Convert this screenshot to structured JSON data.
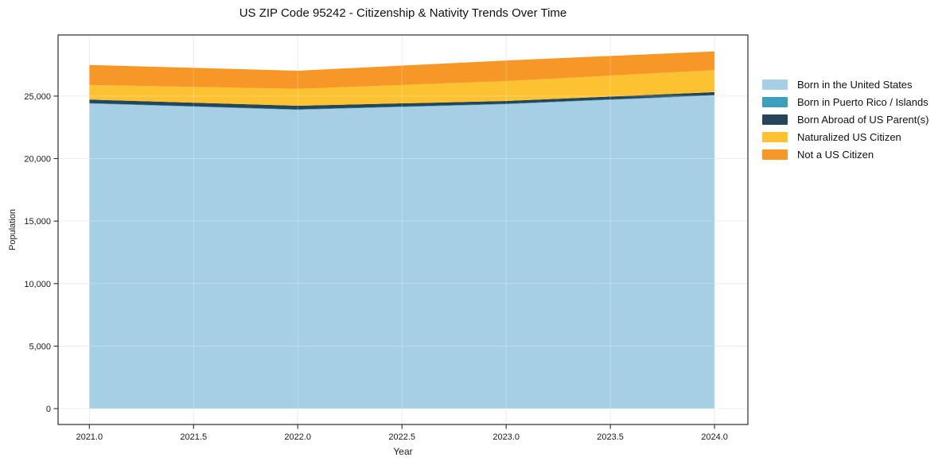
{
  "chart_data": {
    "type": "area",
    "stacked": true,
    "title": "US ZIP Code 95242 - Citizenship & Nativity Trends Over Time",
    "xlabel": "Year",
    "ylabel": "Population",
    "x": [
      2021,
      2022,
      2023,
      2024
    ],
    "series": [
      {
        "name": "Born in the United States",
        "color": "#a6cfe5",
        "values": [
          24400,
          23900,
          24350,
          25050
        ]
      },
      {
        "name": "Born in Puerto Rico / Islands",
        "color": "#3d9fbe",
        "values": [
          40,
          40,
          40,
          40
        ]
      },
      {
        "name": "Born Abroad of US Parent(s)",
        "color": "#24455a",
        "values": [
          280,
          290,
          220,
          230
        ]
      },
      {
        "name": "Naturalized US Citizen",
        "color": "#fcc232",
        "values": [
          1170,
          1350,
          1590,
          1760
        ]
      },
      {
        "name": "Not a US Citizen",
        "color": "#f79727",
        "values": [
          1600,
          1450,
          1650,
          1500
        ]
      }
    ],
    "x_ticks": {
      "values": [
        2021.0,
        2021.5,
        2022.0,
        2022.5,
        2023.0,
        2023.5,
        2024.0
      ],
      "labels": [
        "2021.0",
        "2021.5",
        "2022.0",
        "2022.5",
        "2023.0",
        "2023.5",
        "2024.0"
      ]
    },
    "y_ticks": {
      "values": [
        0,
        5000,
        10000,
        15000,
        20000,
        25000
      ],
      "labels": [
        "0",
        "5,000",
        "10,000",
        "15,000",
        "20,000",
        "25,000"
      ]
    },
    "xlim": [
      2020.85,
      2024.16
    ],
    "ylim": [
      -1270,
      29890
    ],
    "grid": true,
    "grid_color": "#e7e7e7",
    "axis_color": "#2b2b2b",
    "text_color": "#1a1a1a",
    "legend_position": "right-outside"
  }
}
